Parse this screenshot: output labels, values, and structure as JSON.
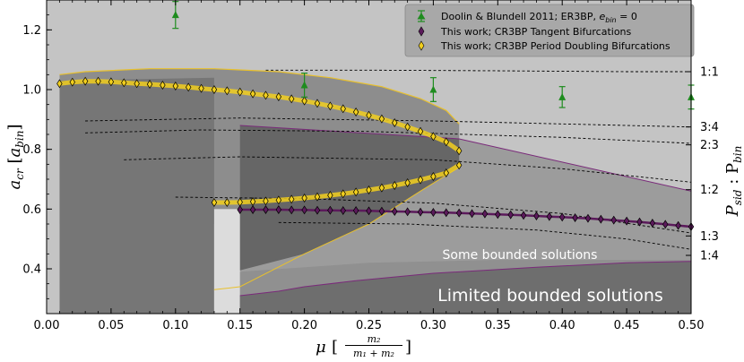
{
  "chart_data": {
    "type": "scatter",
    "x_axis": {
      "label_main": "μ",
      "label_frac_num": "m₂",
      "label_frac_den": "m₁ + m₂",
      "lim": [
        0,
        0.5
      ],
      "ticks": [
        0.0,
        0.05,
        0.1,
        0.15,
        0.2,
        0.25,
        0.3,
        0.35,
        0.4,
        0.45,
        0.5
      ],
      "tick_labels": [
        "0.00",
        "0.05",
        "0.10",
        "0.15",
        "0.20",
        "0.25",
        "0.30",
        "0.35",
        "0.40",
        "0.45",
        "0.50"
      ]
    },
    "y_axis": {
      "label_main": "a",
      "label_sub": "cr",
      "label_unit": "a",
      "label_unit_sub": "bin",
      "lim": [
        0.25,
        1.3
      ],
      "ticks": [
        0.4,
        0.6,
        0.8,
        1.0,
        1.2
      ],
      "tick_labels": [
        "0.4",
        "0.6",
        "0.8",
        "1.0",
        "1.2"
      ]
    },
    "right_axis": {
      "label": "P_sid : P_bin",
      "label_main": "P",
      "label_sub1": "sid",
      "label_mid": " : P",
      "label_sub2": "bin",
      "resonances": [
        {
          "label": "1:1",
          "y": 1.06
        },
        {
          "label": "3:4",
          "y": 0.875
        },
        {
          "label": "2:3",
          "y": 0.815
        },
        {
          "label": "1:2",
          "y": 0.665
        },
        {
          "label": "1:3",
          "y": 0.51
        },
        {
          "label": "1:4",
          "y": 0.445
        }
      ]
    },
    "region_labels": [
      "Some bounded solutions",
      "Limited bounded solutions"
    ],
    "legend": {
      "placement": "top-right",
      "entries": [
        "Doolin & Blundell 2011; ER3BP, e_bin = 0",
        "This work; CR3BP Tangent Bifurcations",
        "This work; CR3BP Period Doubling Bifurcations"
      ],
      "entry1_prefix": "Doolin & Blundell 2011; ER3BP, ",
      "entry1_var": "e",
      "entry1_sub": "bin",
      "entry1_suffix": " = 0"
    },
    "colors": {
      "doolin": "#1e8c1e",
      "tangent": "#5b1a5b",
      "period_doubling": "#f2cf1e",
      "background": "#c4c4c4"
    },
    "series": [
      {
        "name": "Doolin & Blundell 2011; ER3BP, e_bin = 0",
        "marker": "triangle",
        "points": [
          {
            "x": 0.1,
            "y": 1.25,
            "err": 0.045
          },
          {
            "x": 0.2,
            "y": 1.015,
            "err": 0.04
          },
          {
            "x": 0.3,
            "y": 1.0,
            "err": 0.04
          },
          {
            "x": 0.4,
            "y": 0.975,
            "err": 0.035
          },
          {
            "x": 0.5,
            "y": 0.975,
            "err": 0.04
          }
        ]
      },
      {
        "name": "This work; CR3BP Tangent Bifurcations",
        "marker": "diamond",
        "x": [
          0.15,
          0.16,
          0.17,
          0.18,
          0.19,
          0.2,
          0.21,
          0.22,
          0.23,
          0.24,
          0.25,
          0.26,
          0.27,
          0.28,
          0.29,
          0.3,
          0.31,
          0.32,
          0.33,
          0.34,
          0.35,
          0.36,
          0.37,
          0.38,
          0.39,
          0.4,
          0.41,
          0.42,
          0.43,
          0.44,
          0.45,
          0.46,
          0.47,
          0.48,
          0.49,
          0.5
        ],
        "y": [
          0.598,
          0.598,
          0.598,
          0.598,
          0.597,
          0.597,
          0.596,
          0.596,
          0.595,
          0.595,
          0.594,
          0.593,
          0.592,
          0.591,
          0.59,
          0.589,
          0.588,
          0.587,
          0.585,
          0.584,
          0.582,
          0.581,
          0.579,
          0.577,
          0.575,
          0.573,
          0.571,
          0.569,
          0.566,
          0.563,
          0.56,
          0.557,
          0.553,
          0.549,
          0.545,
          0.541
        ]
      },
      {
        "name": "This work; CR3BP Period Doubling Bifurcations",
        "marker": "diamond",
        "upper": {
          "x": [
            0.01,
            0.02,
            0.03,
            0.04,
            0.05,
            0.06,
            0.07,
            0.08,
            0.09,
            0.1,
            0.11,
            0.12,
            0.13,
            0.14,
            0.15,
            0.16,
            0.17,
            0.18,
            0.19,
            0.2,
            0.21,
            0.22,
            0.23,
            0.24,
            0.25,
            0.26,
            0.27,
            0.28,
            0.29,
            0.3,
            0.31,
            0.32
          ],
          "y": [
            1.02,
            1.025,
            1.028,
            1.028,
            1.026,
            1.023,
            1.02,
            1.018,
            1.015,
            1.012,
            1.008,
            1.004,
            1.0,
            0.996,
            0.992,
            0.986,
            0.981,
            0.976,
            0.969,
            0.962,
            0.954,
            0.945,
            0.936,
            0.925,
            0.914,
            0.902,
            0.889,
            0.875,
            0.86,
            0.843,
            0.825,
            0.795
          ]
        },
        "lower": {
          "x": [
            0.13,
            0.14,
            0.15,
            0.16,
            0.17,
            0.18,
            0.19,
            0.2,
            0.21,
            0.22,
            0.23,
            0.24,
            0.25,
            0.26,
            0.27,
            0.28,
            0.29,
            0.3,
            0.31,
            0.32
          ],
          "y": [
            0.622,
            0.622,
            0.623,
            0.625,
            0.627,
            0.63,
            0.633,
            0.637,
            0.641,
            0.646,
            0.651,
            0.657,
            0.664,
            0.671,
            0.679,
            0.688,
            0.698,
            0.709,
            0.721,
            0.747
          ]
        }
      }
    ]
  }
}
